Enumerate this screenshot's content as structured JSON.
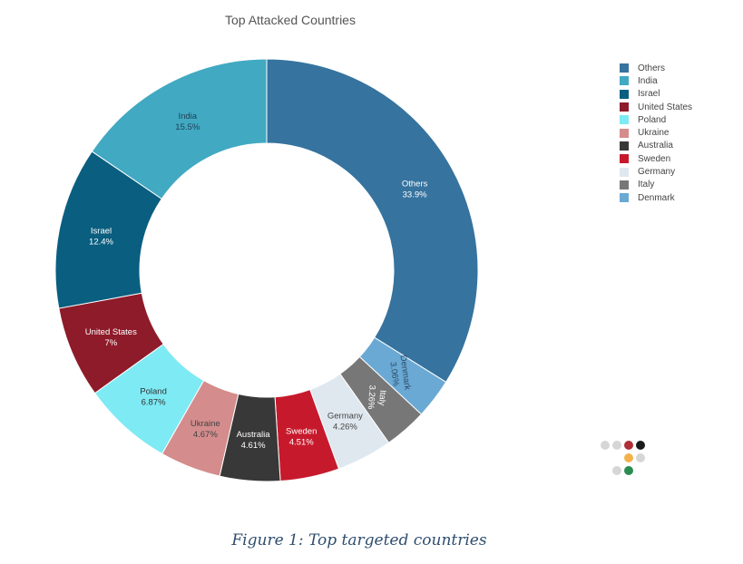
{
  "chart_data": {
    "type": "pie",
    "title": "Top Attacked Countries",
    "donut": true,
    "legend_position": "right",
    "slices": [
      {
        "label": "Others",
        "value": 33.9,
        "display": "33.9%",
        "color": "#36739e",
        "text_color": "#ffffff"
      },
      {
        "label": "Denmark",
        "value": 3.06,
        "display": "3.06%",
        "color": "#6aa9d4",
        "text_color": "#2b4a66"
      },
      {
        "label": "Italy",
        "value": 3.26,
        "display": "3.26%",
        "color": "#777777",
        "text_color": "#ffffff"
      },
      {
        "label": "Germany",
        "value": 4.26,
        "display": "4.26%",
        "color": "#dfe8ef",
        "text_color": "#444444"
      },
      {
        "label": "Sweden",
        "value": 4.51,
        "display": "4.51%",
        "color": "#c61a2c",
        "text_color": "#ffffff"
      },
      {
        "label": "Australia",
        "value": 4.61,
        "display": "4.61%",
        "color": "#383838",
        "text_color": "#ffffff"
      },
      {
        "label": "Ukraine",
        "value": 4.67,
        "display": "4.67%",
        "color": "#d48c8c",
        "text_color": "#444444"
      },
      {
        "label": "Poland",
        "value": 6.87,
        "display": "6.87%",
        "color": "#7eeaf4",
        "text_color": "#333333"
      },
      {
        "label": "United States",
        "value": 7,
        "display": "7%",
        "color": "#8e1b2a",
        "text_color": "#ffffff"
      },
      {
        "label": "Israel",
        "value": 12.4,
        "display": "12.4%",
        "color": "#0a5e80",
        "text_color": "#ffffff"
      },
      {
        "label": "India",
        "value": 15.5,
        "display": "15.5%",
        "color": "#41a9c2",
        "text_color": "#1f3f55"
      }
    ],
    "legend_order": [
      "Others",
      "India",
      "Israel",
      "United States",
      "Poland",
      "Ukraine",
      "Australia",
      "Sweden",
      "Germany",
      "Italy",
      "Denmark"
    ]
  },
  "loading_dots": [
    "#d6d6d6",
    "#d6d6d6",
    "#b02e36",
    "#1a1a1a",
    "#f3b24a",
    "#d6d6d6",
    "#d6d6d6",
    "#2a8c52"
  ],
  "caption": "Figure 1: Top targeted countries"
}
